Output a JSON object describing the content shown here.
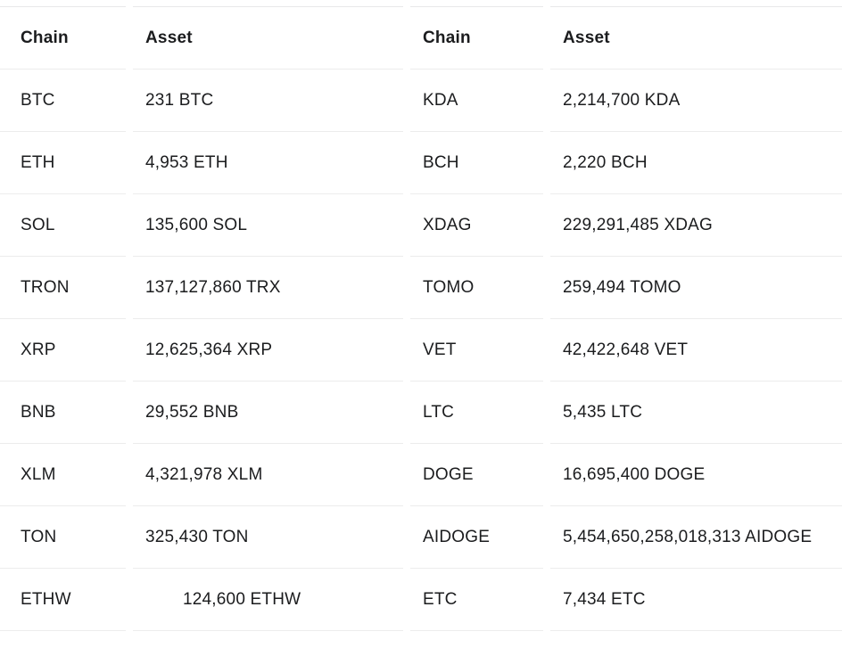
{
  "page": {
    "background_color": "#ffffff",
    "text_color": "#1b1c1e",
    "row_border_color": "#ececec",
    "top_border_color": "#e8e8e9"
  },
  "table": {
    "left": {
      "header": {
        "chain": "Chain",
        "asset": "Asset"
      },
      "rows": [
        {
          "chain": "BTC",
          "asset": "231 BTC"
        },
        {
          "chain": "ETH",
          "asset": "4,953 ETH"
        },
        {
          "chain": "SOL",
          "asset": "135,600 SOL"
        },
        {
          "chain": "TRON",
          "asset": "137,127,860 TRX"
        },
        {
          "chain": "XRP",
          "asset": "12,625,364 XRP"
        },
        {
          "chain": "BNB",
          "asset": "29,552 BNB"
        },
        {
          "chain": "XLM",
          "asset": "4,321,978 XLM"
        },
        {
          "chain": "TON",
          "asset": "325,430 TON"
        },
        {
          "chain": "ETHW",
          "asset": "124,600 ETHW",
          "asset_indented": true
        }
      ]
    },
    "right": {
      "header": {
        "chain": "Chain",
        "asset": "Asset"
      },
      "rows": [
        {
          "chain": "KDA",
          "asset": "2,214,700 KDA"
        },
        {
          "chain": "BCH",
          "asset": "2,220 BCH"
        },
        {
          "chain": "XDAG",
          "asset": "229,291,485 XDAG"
        },
        {
          "chain": "TOMO",
          "asset": "259,494 TOMO"
        },
        {
          "chain": "VET",
          "asset": "42,422,648 VET"
        },
        {
          "chain": "LTC",
          "asset": "5,435 LTC"
        },
        {
          "chain": "DOGE",
          "asset": "16,695,400 DOGE"
        },
        {
          "chain": "AIDOGE",
          "asset": "5,454,650,258,018,313 AIDOGE"
        },
        {
          "chain": "ETC",
          "asset": "7,434 ETC"
        }
      ]
    }
  },
  "chart_data": {
    "type": "table",
    "title": "",
    "columns": [
      "Chain",
      "Asset",
      "Chain",
      "Asset"
    ],
    "rows": [
      [
        "BTC",
        "231 BTC",
        "KDA",
        "2,214,700 KDA"
      ],
      [
        "ETH",
        "4,953 ETH",
        "BCH",
        "2,220 BCH"
      ],
      [
        "SOL",
        "135,600 SOL",
        "XDAG",
        "229,291,485 XDAG"
      ],
      [
        "TRON",
        "137,127,860 TRX",
        "TOMO",
        "259,494 TOMO"
      ],
      [
        "XRP",
        "12,625,364 XRP",
        "VET",
        "42,422,648 VET"
      ],
      [
        "BNB",
        "29,552 BNB",
        "LTC",
        "5,435 LTC"
      ],
      [
        "XLM",
        "4,321,978 XLM",
        "DOGE",
        "16,695,400 DOGE"
      ],
      [
        "TON",
        "325,430 TON",
        "AIDOGE",
        "5,454,650,258,018,313 AIDOGE"
      ],
      [
        "ETHW",
        "124,600 ETHW",
        "ETC",
        "7,434 ETC"
      ]
    ]
  }
}
